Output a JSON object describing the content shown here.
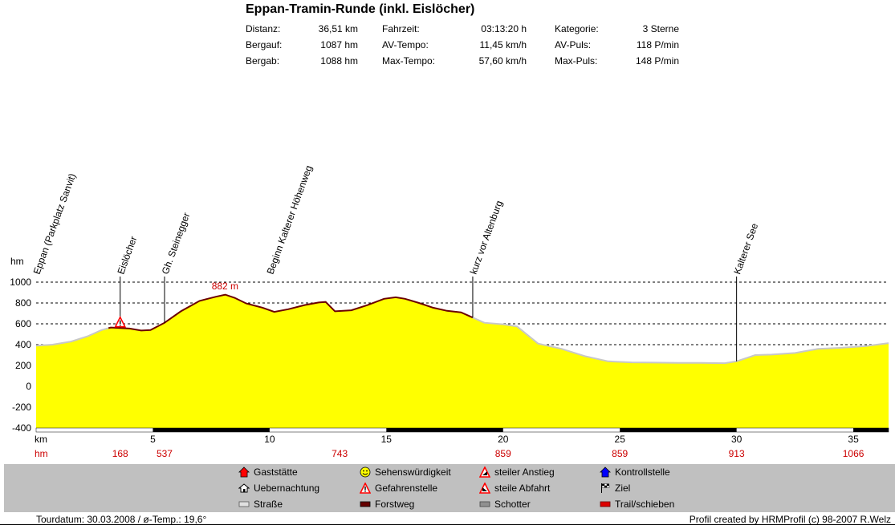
{
  "title": "Eppan-Tramin-Runde (inkl. Eislöcher)",
  "stats": [
    {
      "label": "Distanz:",
      "value": "36,51 km"
    },
    {
      "label": "Bergauf:",
      "value": "1087 hm"
    },
    {
      "label": "Bergab:",
      "value": "1088 hm"
    },
    {
      "label": "Fahrzeit:",
      "value": "03:13:20 h"
    },
    {
      "label": "AV-Tempo:",
      "value": "11,45 km/h"
    },
    {
      "label": "Max-Tempo:",
      "value": "57,60 km/h"
    },
    {
      "label": "Kategorie:",
      "value": "3 Sterne"
    },
    {
      "label": "AV-Puls:",
      "value": "118 P/min"
    },
    {
      "label": "Max-Puls:",
      "value": "148 P/min"
    }
  ],
  "chart_data": {
    "type": "area",
    "ylabel": "hm",
    "xlabel": "km",
    "xlim": [
      0,
      36.51
    ],
    "ylim": [
      -400,
      1000
    ],
    "y_ticks": [
      1000,
      800,
      600,
      400,
      200,
      0,
      -200,
      -400
    ],
    "x_ticks": [
      5,
      10,
      15,
      20,
      25,
      30,
      35
    ],
    "grid": true,
    "fill_color": "#ffff00",
    "profile": {
      "x": [
        0,
        0.7,
        1.5,
        2.2,
        2.8,
        3.2,
        3.6,
        4.0,
        4.5,
        4.9,
        5.5,
        6.2,
        7.0,
        7.7,
        8.1,
        8.5,
        9.0,
        9.7,
        10.2,
        10.8,
        11.5,
        12.1,
        12.4,
        12.8,
        13.5,
        14.2,
        14.9,
        15.4,
        15.8,
        16.4,
        17.0,
        17.6,
        18.2,
        18.7,
        19.2,
        20.0,
        20.6,
        21.5,
        22.5,
        23.5,
        24.5,
        25.5,
        26.5,
        27.5,
        28.5,
        29.5,
        30.0,
        30.8,
        31.5,
        32.5,
        33.5,
        34.5,
        35.5,
        36.51
      ],
      "y": [
        390,
        400,
        430,
        480,
        540,
        565,
        560,
        555,
        535,
        540,
        610,
        720,
        820,
        860,
        880,
        850,
        795,
        755,
        715,
        740,
        780,
        805,
        810,
        720,
        730,
        780,
        840,
        855,
        840,
        800,
        755,
        725,
        710,
        660,
        610,
        595,
        575,
        410,
        360,
        290,
        240,
        230,
        228,
        225,
        225,
        222,
        240,
        300,
        305,
        320,
        360,
        370,
        385,
        415
      ]
    },
    "surface_segments": [
      {
        "from": 0,
        "to": 3.1,
        "type": "Straße"
      },
      {
        "from": 3.1,
        "to": 18.7,
        "type": "Forstweg"
      },
      {
        "from": 18.7,
        "to": 36.51,
        "type": "Straße"
      }
    ],
    "waypoints": [
      {
        "km": 0.0,
        "label": "Eppan (Parkplatz Sanvit)",
        "hm": "",
        "line": false
      },
      {
        "km": 3.6,
        "label": "Eislöcher",
        "hm": "168",
        "line": true
      },
      {
        "km": 5.5,
        "label": "Gh. Steinegger",
        "hm": "537",
        "line": true
      },
      {
        "km": 10.0,
        "label": "Beginn Kalterer Höhenweg",
        "hm": "743",
        "line": false
      },
      {
        "km": 18.7,
        "label": "kurz vor Altenburg",
        "hm": "859",
        "line": true
      },
      {
        "km": 30.0,
        "label": "Kalterer See",
        "hm": "913",
        "line": true
      }
    ],
    "hm_row": [
      {
        "km": 3.6,
        "value": "168"
      },
      {
        "km": 5.5,
        "value": "537"
      },
      {
        "km": 13.0,
        "value": "743"
      },
      {
        "km": 20.0,
        "value": "859"
      },
      {
        "km": 25.0,
        "value": "859"
      },
      {
        "km": 30.0,
        "value": "913"
      },
      {
        "km": 35.0,
        "value": "1066"
      }
    ],
    "max_annotation": {
      "km": 8.0,
      "label": "882 m"
    },
    "icons": [
      {
        "km": 3.6,
        "hm": 610,
        "type": "Gefahrenstelle"
      }
    ],
    "bottom_bar_segments": [
      [
        5,
        10
      ],
      [
        15,
        20
      ],
      [
        25,
        30
      ],
      [
        35,
        36.51
      ]
    ]
  },
  "legend": {
    "items": [
      {
        "label": "Gaststätte",
        "icon": "red-house-icon"
      },
      {
        "label": "Uebernachtung",
        "icon": "lodge-icon"
      },
      {
        "label": "Straße",
        "icon": "road-swatch-icon"
      },
      {
        "label": "Sehenswürdigkeit",
        "icon": "smiley-icon"
      },
      {
        "label": "Gefahrenstelle",
        "icon": "warning-icon"
      },
      {
        "label": "Forstweg",
        "icon": "forest-swatch-icon"
      },
      {
        "label": "steiler Anstieg",
        "icon": "steep-up-icon"
      },
      {
        "label": "steile Abfahrt",
        "icon": "steep-down-icon"
      },
      {
        "label": "Schotter",
        "icon": "gravel-swatch-icon"
      },
      {
        "label": "Kontrollstelle",
        "icon": "blue-house-icon"
      },
      {
        "label": "Ziel",
        "icon": "finish-flag-icon"
      },
      {
        "label": "Trail/schieben",
        "icon": "trail-swatch-icon"
      }
    ]
  },
  "footer": {
    "left": "Tourdatum: 30.03.2008  /  ø-Temp.: 19,6°",
    "right": "Profil created by HRMProfil (c) 98-2007 R.Welz"
  }
}
